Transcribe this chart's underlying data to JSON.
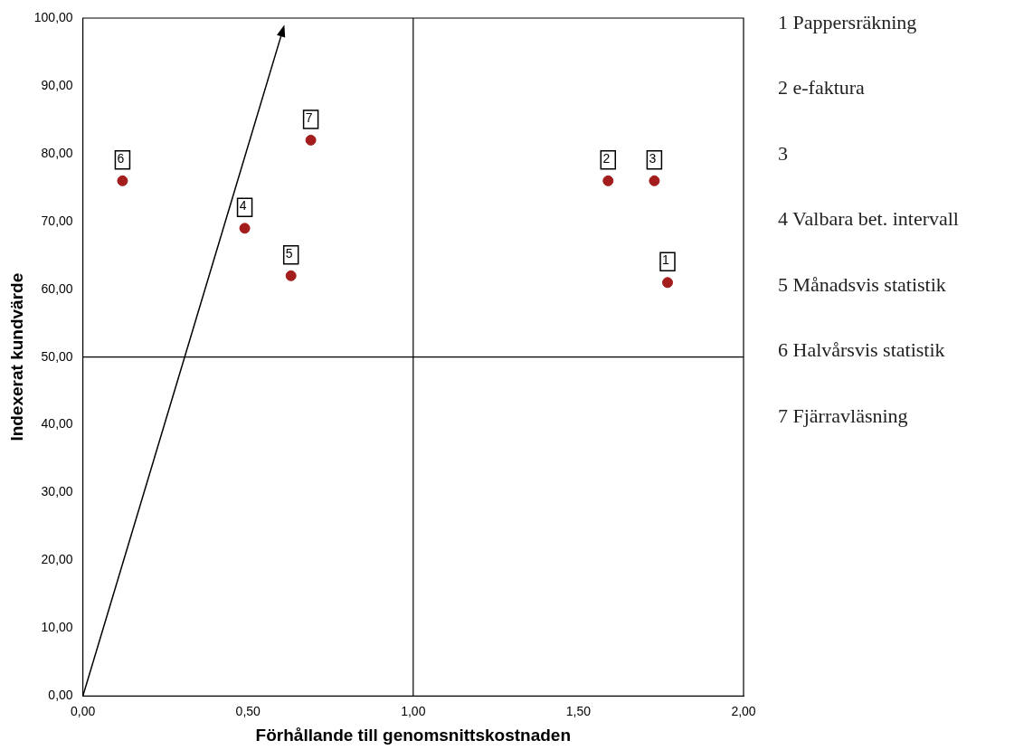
{
  "chart_data": {
    "type": "scatter",
    "xlabel": "Förhållande till genomsnittskostnaden",
    "ylabel": "Indexerat kundvärde",
    "series": [
      {
        "marker": "circle",
        "color": "#a31d1d",
        "x": [
          1.77,
          1.59,
          1.73,
          0.49,
          0.63,
          0.12,
          0.69
        ],
        "values": [
          61,
          76,
          76,
          69,
          62,
          76,
          82
        ]
      }
    ],
    "xlim": [
      0,
      2
    ],
    "xticks": [
      {
        "value": 0,
        "label": "0,00"
      },
      {
        "value": 0.5,
        "label": "0,50"
      },
      {
        "value": 1,
        "label": "1,00"
      },
      {
        "value": 1.5,
        "label": "1,50"
      },
      {
        "value": 2,
        "label": "2,00"
      }
    ],
    "ylim": [
      0,
      100
    ],
    "yticks": [
      {
        "value": 0,
        "label": "0,00"
      },
      {
        "value": 10,
        "label": "10,00"
      },
      {
        "value": 20,
        "label": "20,00"
      },
      {
        "value": 30,
        "label": "30,00"
      },
      {
        "value": 40,
        "label": "40,00"
      },
      {
        "value": 50,
        "label": "50,00"
      },
      {
        "value": 60,
        "label": "60,00"
      },
      {
        "value": 70,
        "label": "70,00"
      },
      {
        "value": 80,
        "label": "80,00"
      },
      {
        "value": 90,
        "label": "90,00"
      },
      {
        "value": 100,
        "label": "100,00"
      }
    ],
    "ref_lines": [
      {
        "axis": "x",
        "value": 1
      },
      {
        "axis": "y",
        "value": 50
      }
    ],
    "annotations": [
      {
        "text": "1",
        "x": 1.77,
        "y": 61
      },
      {
        "text": "2",
        "x": 1.59,
        "y": 76
      },
      {
        "text": "3",
        "x": 1.73,
        "y": 76
      },
      {
        "text": "4",
        "x": 0.49,
        "y": 69
      },
      {
        "text": "5",
        "x": 0.63,
        "y": 62
      },
      {
        "text": "6",
        "x": 0.12,
        "y": 76
      },
      {
        "text": "7",
        "x": 0.69,
        "y": 82
      },
      "1 Pappersräkning",
      "2 e-faktura",
      "3",
      "4 Valbara bet. intervall",
      "5 Månadsvis statistik",
      "6 Halvårsvis statistik",
      "7 Fjärravläsning"
    ],
    "grid": false,
    "legend": false
  }
}
